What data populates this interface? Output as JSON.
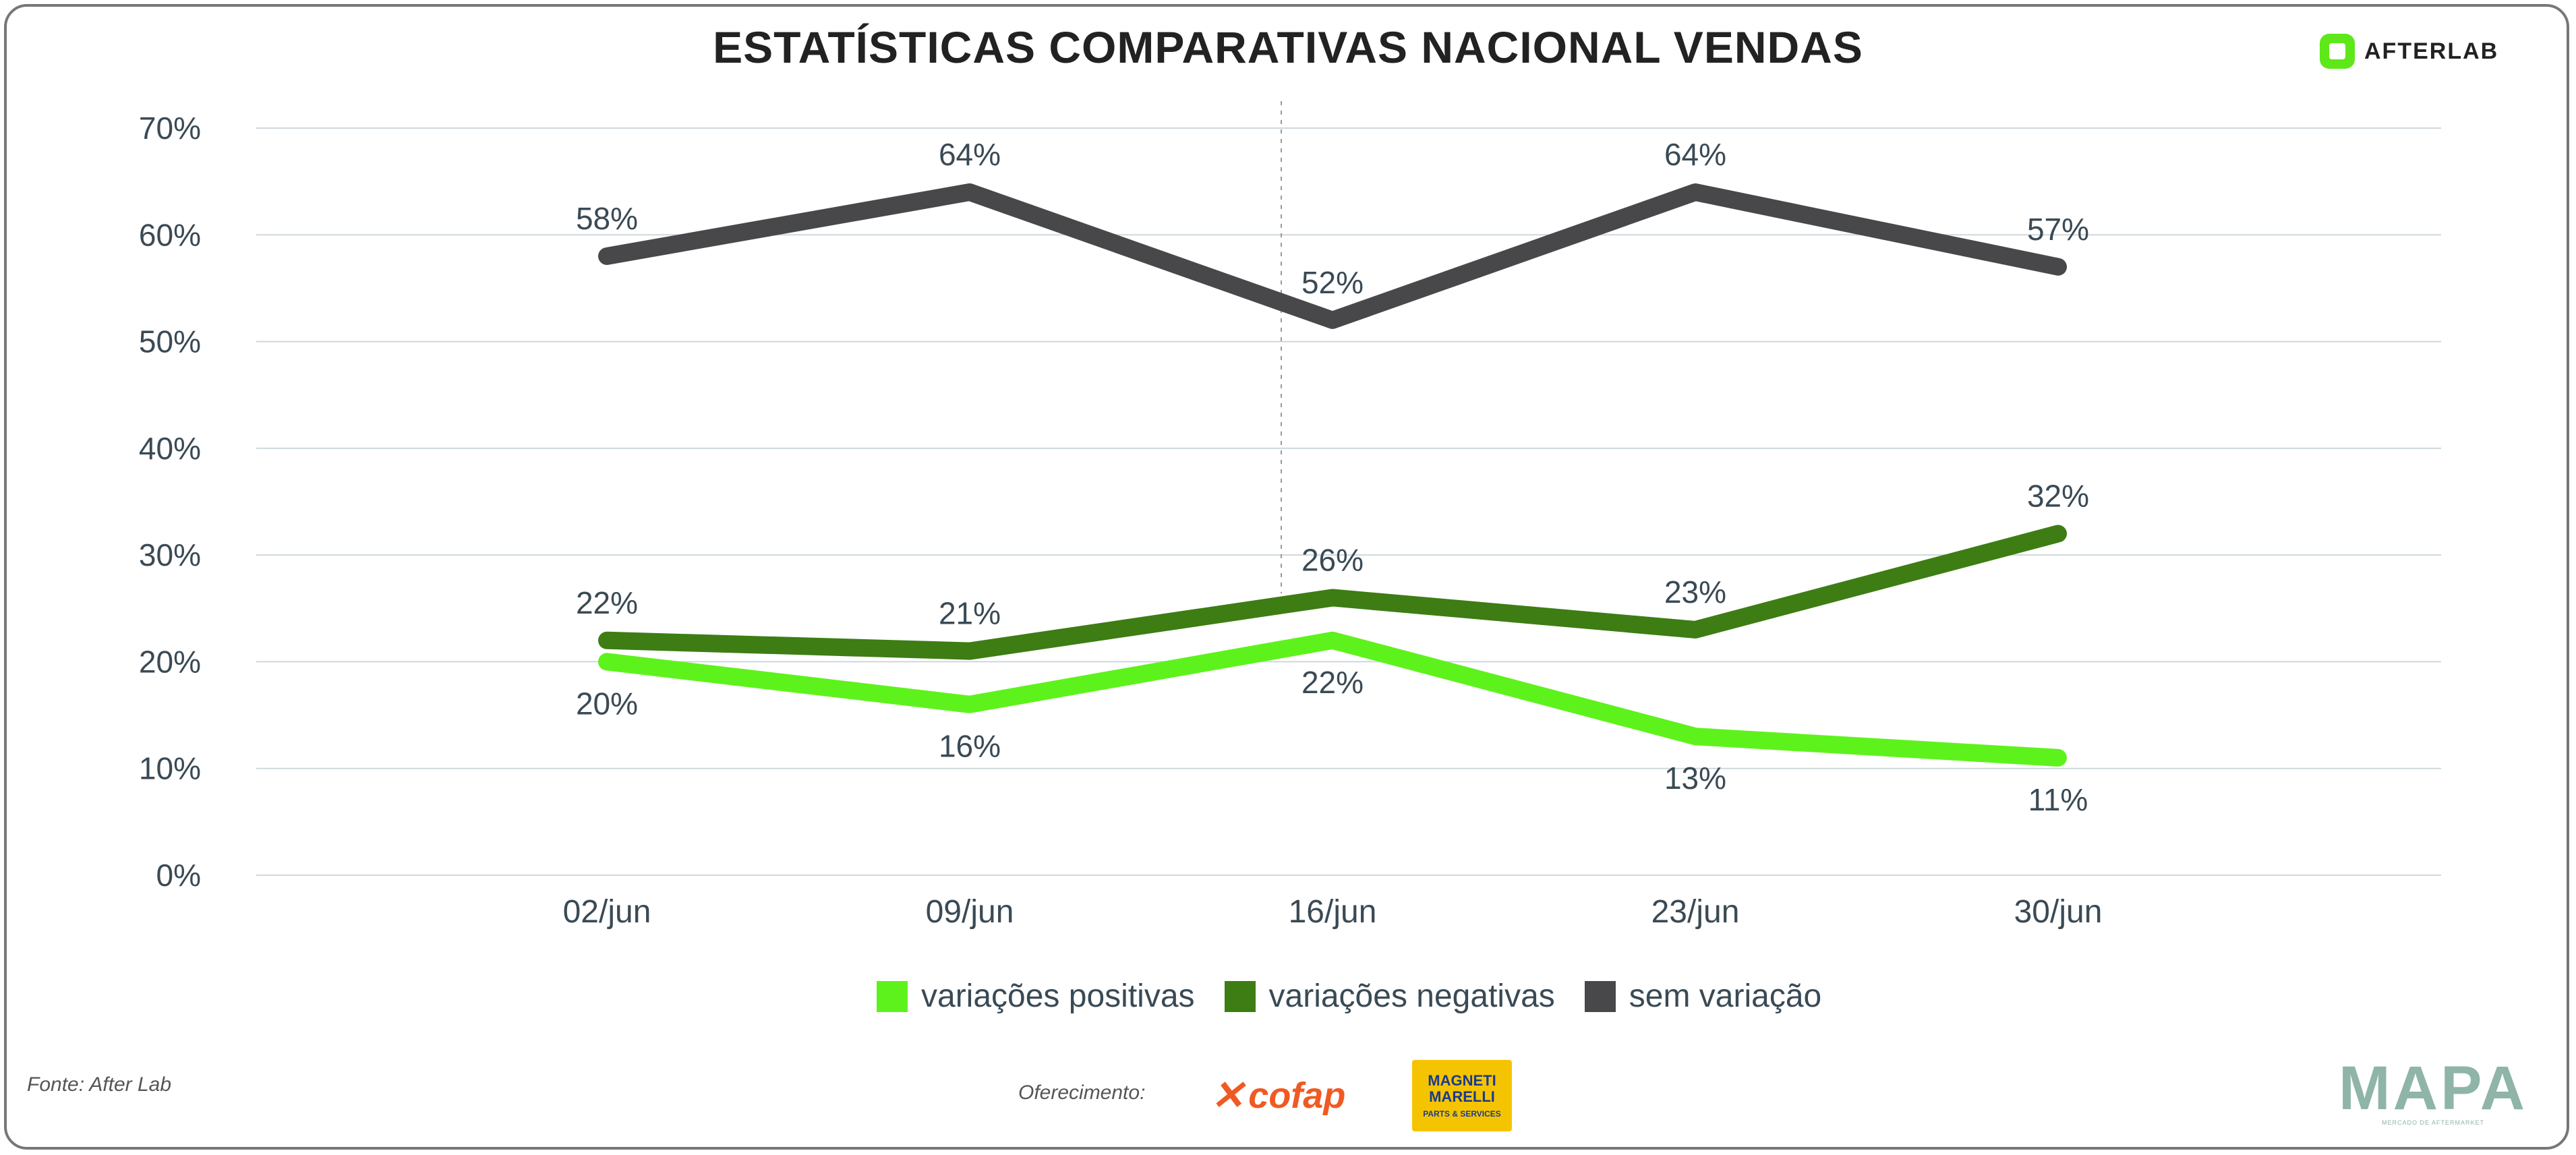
{
  "chart_data": {
    "type": "line",
    "title": "ESTATÍSTICAS COMPARATIVAS NACIONAL VENDAS",
    "categories": [
      "02/jun",
      "09/jun",
      "16/jun",
      "23/jun",
      "30/jun"
    ],
    "y_ticks": [
      "0%",
      "10%",
      "20%",
      "30%",
      "40%",
      "50%",
      "60%",
      "70%"
    ],
    "ylim": [
      0,
      70
    ],
    "grid": true,
    "legend_position": "bottom",
    "series": [
      {
        "name": "variações positivas",
        "color": "#5ef21c",
        "values": [
          20,
          16,
          22,
          13,
          11
        ],
        "labels": [
          "20%",
          "16%",
          "22%",
          "13%",
          "11%"
        ],
        "label_side": "below"
      },
      {
        "name": "variações negativas",
        "color": "#3d7d14",
        "values": [
          22,
          21,
          26,
          23,
          32
        ],
        "labels": [
          "22%",
          "21%",
          "26%",
          "23%",
          "32%"
        ],
        "label_side": "above"
      },
      {
        "name": "sem variação",
        "color": "#48484b",
        "values": [
          58,
          64,
          52,
          64,
          57
        ],
        "labels": [
          "58%",
          "64%",
          "52%",
          "64%",
          "57%"
        ],
        "label_side": "above"
      }
    ]
  },
  "header": {
    "brand": "AFTERLAB"
  },
  "footer": {
    "source": "Fonte: After Lab",
    "support": "Oferecimento:",
    "sponsor1": "cofap",
    "sponsor2_line1": "MAGNETI",
    "sponsor2_line2": "MARELLI",
    "sponsor2_tag": "PARTS & SERVICES",
    "mapa": "MAPA",
    "mapa_tagline": "MERCADO DE AFTERMARKET"
  }
}
